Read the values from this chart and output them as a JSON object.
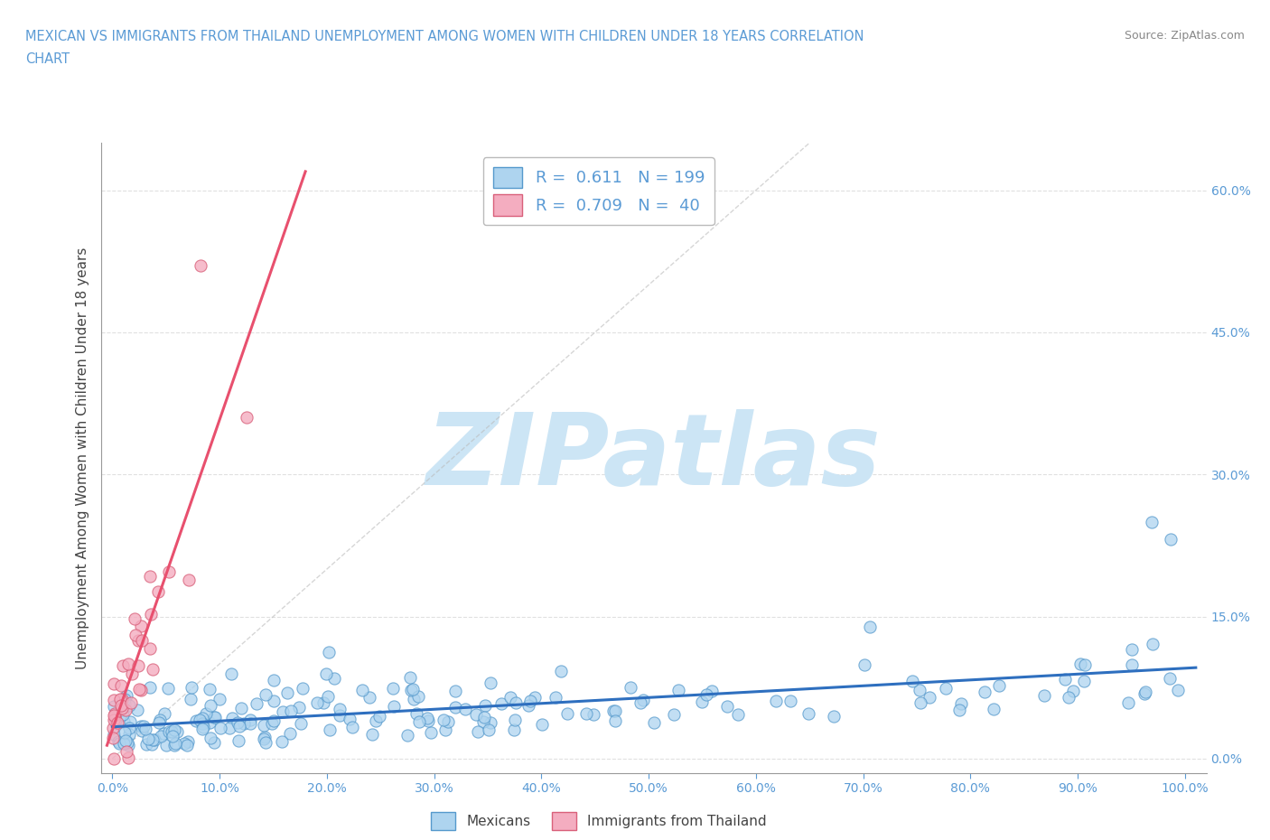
{
  "title_line1": "MEXICAN VS IMMIGRANTS FROM THAILAND UNEMPLOYMENT AMONG WOMEN WITH CHILDREN UNDER 18 YEARS CORRELATION",
  "title_line2": "CHART",
  "source": "Source: ZipAtlas.com",
  "ylabel": "Unemployment Among Women with Children Under 18 years",
  "xlim": [
    -0.01,
    1.02
  ],
  "ylim": [
    -0.015,
    0.65
  ],
  "xticks": [
    0.0,
    0.1,
    0.2,
    0.3,
    0.4,
    0.5,
    0.6,
    0.7,
    0.8,
    0.9,
    1.0
  ],
  "xticklabels": [
    "0.0%",
    "10.0%",
    "20.0%",
    "30.0%",
    "40.0%",
    "50.0%",
    "60.0%",
    "70.0%",
    "80.0%",
    "90.0%",
    "100.0%"
  ],
  "yticks": [
    0.0,
    0.15,
    0.3,
    0.45,
    0.6
  ],
  "right_ytick_labels": [
    "0.0%",
    "15.0%",
    "30.0%",
    "45.0%",
    "60.0%"
  ],
  "grid_color": "#cccccc",
  "watermark": "ZIPatlas",
  "watermark_color": "#cce5f5",
  "legend_R1": "0.611",
  "legend_N1": "199",
  "legend_R2": "0.709",
  "legend_N2": "40",
  "title_color": "#5b9bd5",
  "axis_color": "#5b9bd5",
  "blue_scatter_color": "#aed4ef",
  "blue_edge_color": "#5599cc",
  "pink_scatter_color": "#f4adc0",
  "pink_edge_color": "#d9607a",
  "blue_trend_color": "#2e6fbf",
  "pink_trend_color": "#e8506e",
  "diag_color": "#bbbbbb",
  "seed": 42,
  "n_mexican": 199,
  "n_thailand": 40
}
